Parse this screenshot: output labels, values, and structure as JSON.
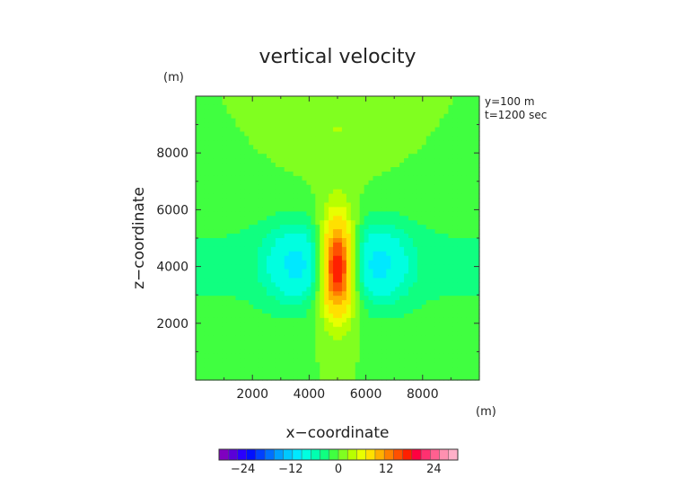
{
  "chart_data": {
    "type": "heatmap",
    "title": "vertical velocity",
    "xlabel": "x−coordinate",
    "ylabel": "z−coordinate",
    "x_unit": "(m)",
    "y_unit": "(m)",
    "xlim": [
      0,
      10000
    ],
    "ylim": [
      0,
      10000
    ],
    "xticks": [
      2000,
      4000,
      6000,
      8000
    ],
    "yticks": [
      2000,
      4000,
      6000,
      8000
    ],
    "xtick_labels": [
      "2000",
      "4000",
      "6000",
      "8000"
    ],
    "ytick_labels": [
      "2000",
      "4000",
      "6000",
      "8000"
    ],
    "annotations": [
      "y=100  m",
      "t=1200  sec"
    ],
    "colorbar": {
      "range": [
        -30,
        30
      ],
      "ticks": [
        -24,
        -12,
        0,
        12,
        24
      ],
      "tick_labels": [
        "−24",
        "−12",
        "0",
        "12",
        "24"
      ],
      "levels": 30,
      "colors": [
        "#7f00c0",
        "#5a00d8",
        "#2a00ff",
        "#0010ff",
        "#0040ff",
        "#0070ff",
        "#00a0ff",
        "#00c8ff",
        "#00e8ff",
        "#00ffe0",
        "#00ffb0",
        "#10ff80",
        "#40ff40",
        "#80ff20",
        "#b8ff00",
        "#e8ff00",
        "#ffe000",
        "#ffb000",
        "#ff8000",
        "#ff5000",
        "#ff2000",
        "#ff0040",
        "#ff3070",
        "#ff6090",
        "#ff90b0",
        "#ffb0c8"
      ]
    },
    "field": {
      "description_of_values": "vertical velocity w (m/s)",
      "updraft": {
        "x": 5000,
        "z": 4000,
        "peak": 21
      },
      "downdrafts": [
        {
          "x": 3600,
          "z": 4100,
          "peak": -9
        },
        {
          "x": 6400,
          "z": 4100,
          "peak": -9
        }
      ],
      "background": 0
    }
  }
}
